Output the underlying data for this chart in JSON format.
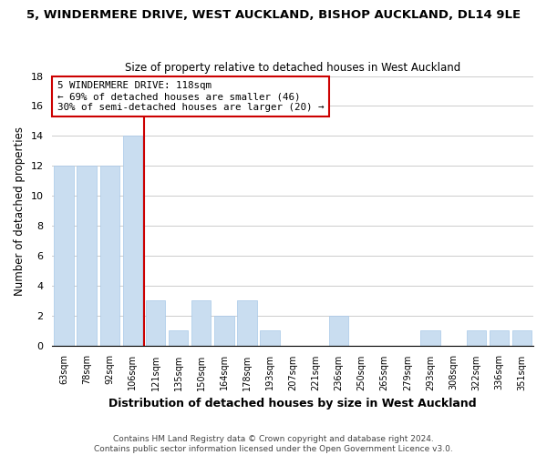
{
  "title": "5, WINDERMERE DRIVE, WEST AUCKLAND, BISHOP AUCKLAND, DL14 9LE",
  "subtitle": "Size of property relative to detached houses in West Auckland",
  "xlabel": "Distribution of detached houses by size in West Auckland",
  "ylabel": "Number of detached properties",
  "bins": [
    "63sqm",
    "78sqm",
    "92sqm",
    "106sqm",
    "121sqm",
    "135sqm",
    "150sqm",
    "164sqm",
    "178sqm",
    "193sqm",
    "207sqm",
    "221sqm",
    "236sqm",
    "250sqm",
    "265sqm",
    "279sqm",
    "293sqm",
    "308sqm",
    "322sqm",
    "336sqm",
    "351sqm"
  ],
  "counts": [
    12,
    12,
    12,
    14,
    3,
    1,
    3,
    2,
    3,
    1,
    0,
    0,
    2,
    0,
    0,
    0,
    1,
    0,
    1,
    1,
    1
  ],
  "bar_color": "#c9ddf0",
  "bar_edge_color": "#a8c8e8",
  "marker_color": "#cc0000",
  "annotation_title": "5 WINDERMERE DRIVE: 118sqm",
  "annotation_line1": "← 69% of detached houses are smaller (46)",
  "annotation_line2": "30% of semi-detached houses are larger (20) →",
  "annotation_box_edge": "#cc0000",
  "ylim": [
    0,
    18
  ],
  "yticks": [
    0,
    2,
    4,
    6,
    8,
    10,
    12,
    14,
    16,
    18
  ],
  "footer1": "Contains HM Land Registry data © Crown copyright and database right 2024.",
  "footer2": "Contains public sector information licensed under the Open Government Licence v3.0."
}
